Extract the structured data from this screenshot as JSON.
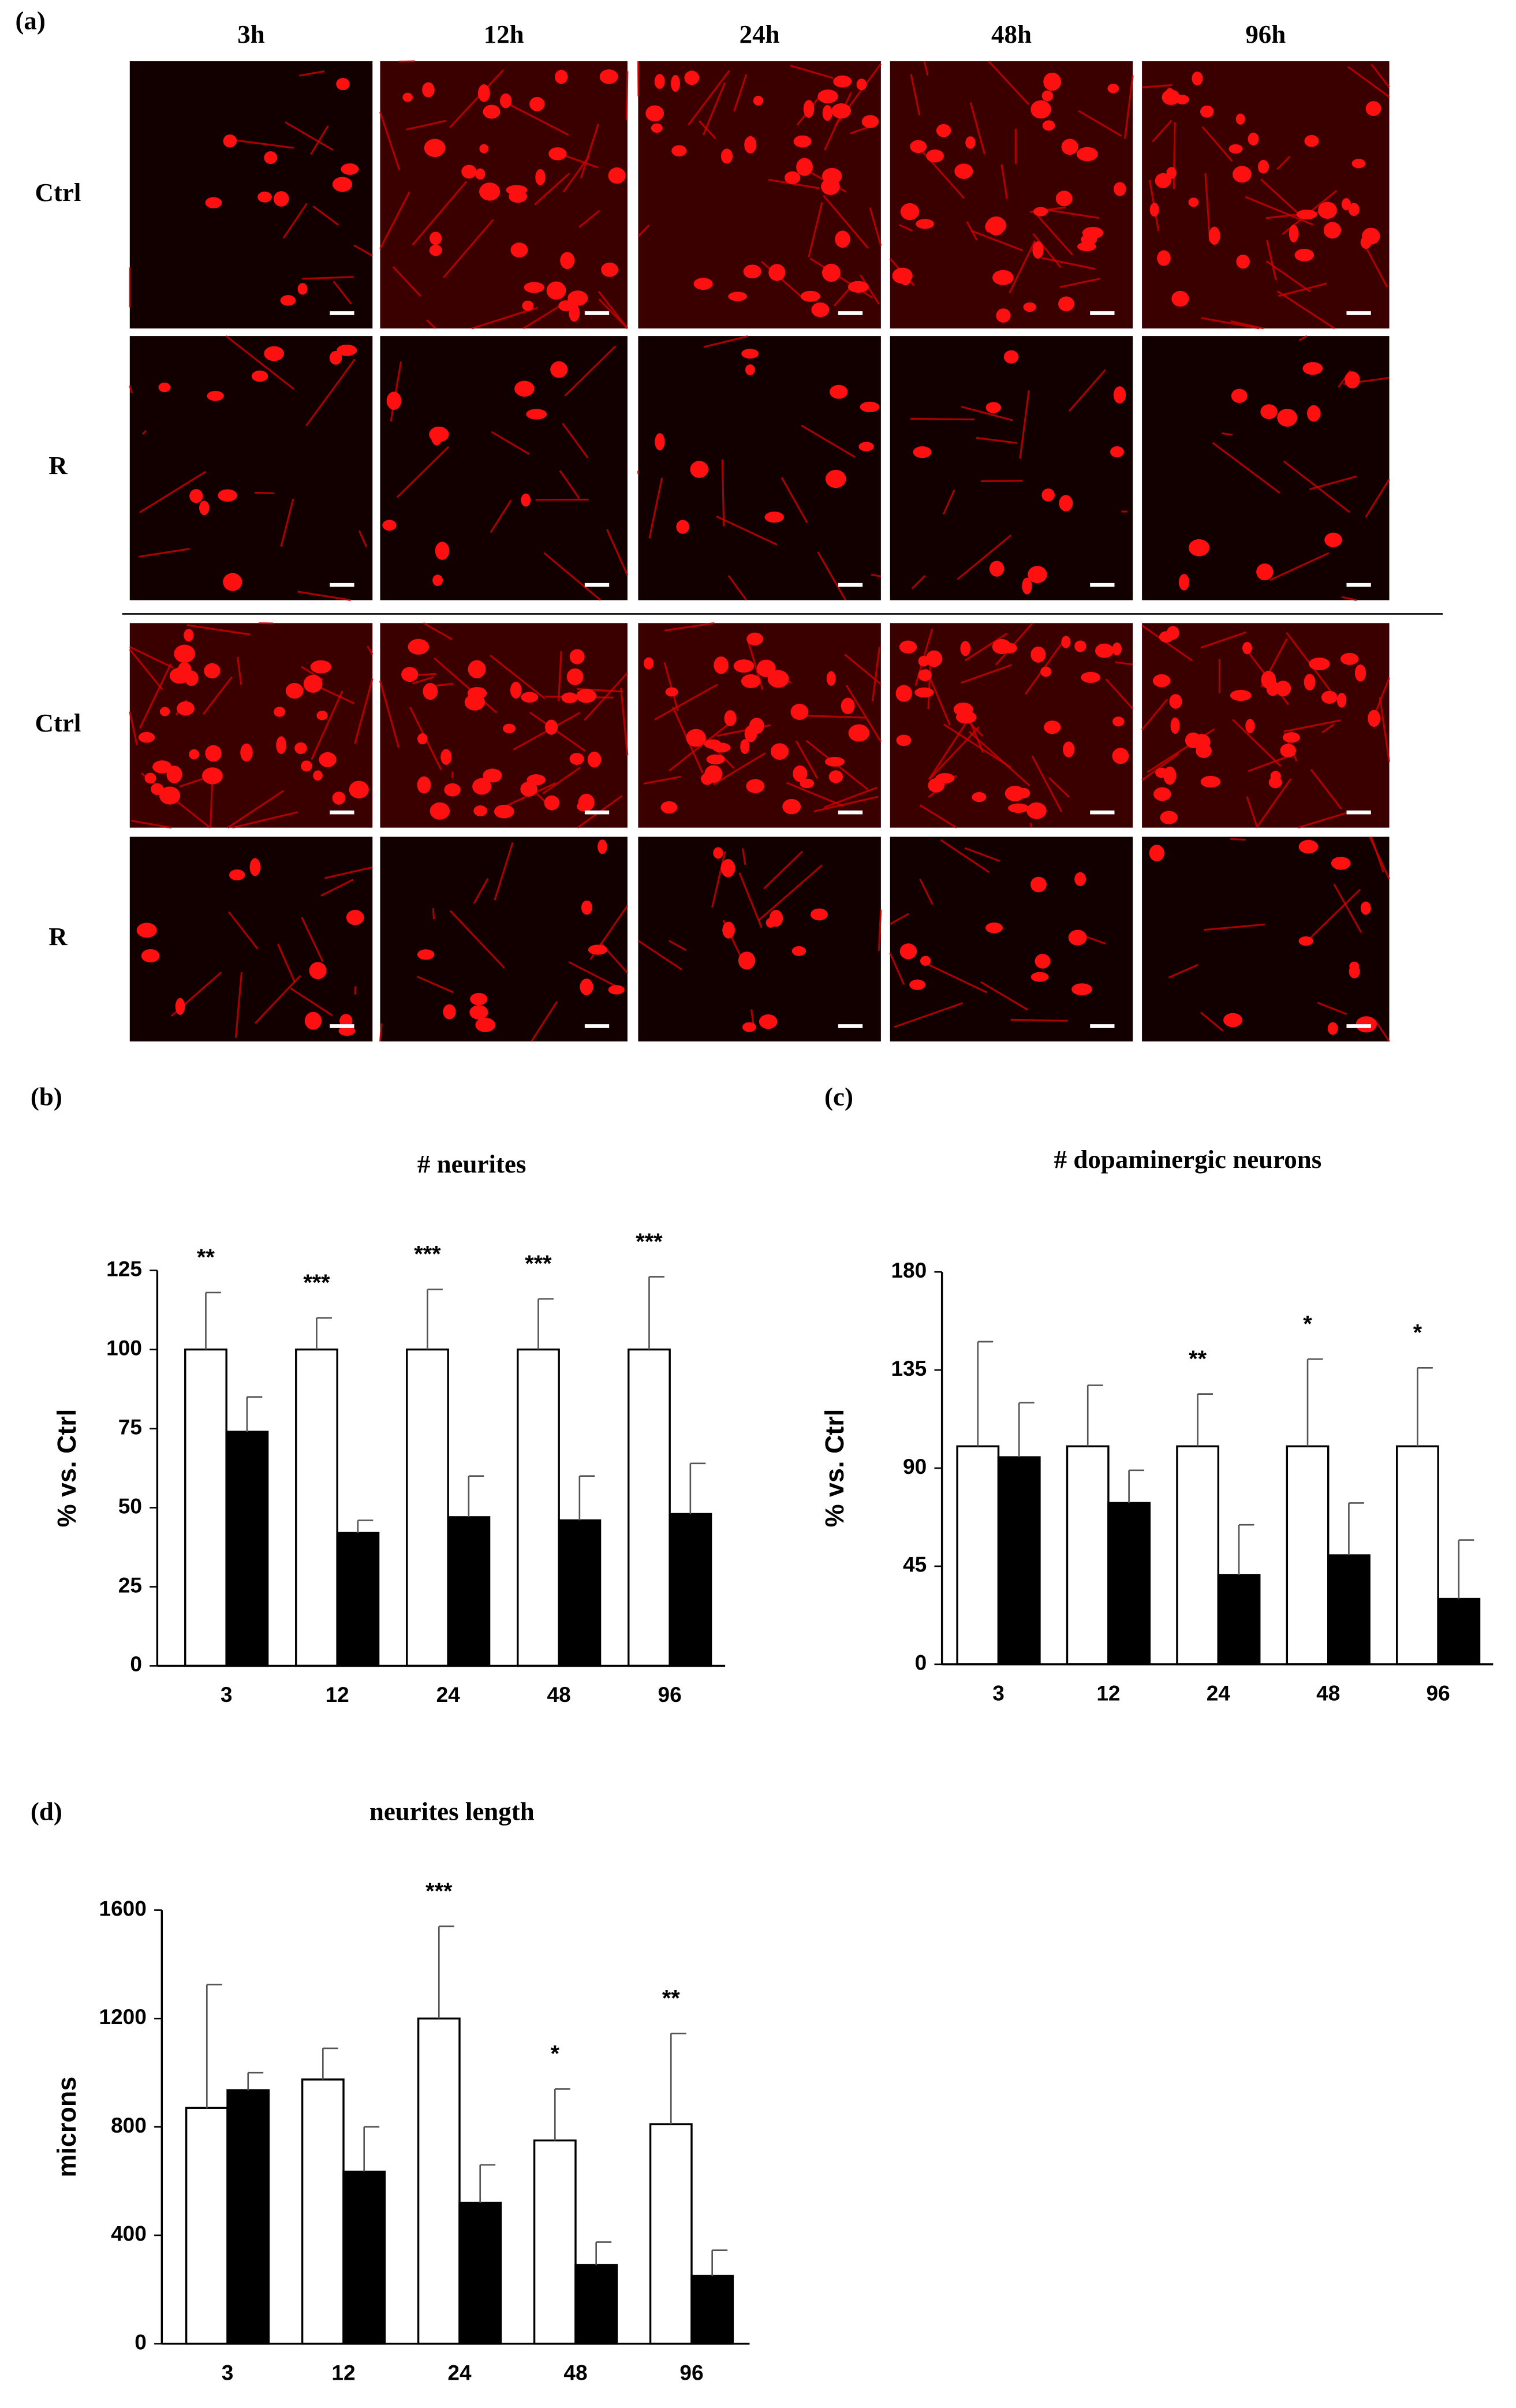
{
  "panel_a": {
    "label": "(a)",
    "columns": [
      "3h",
      "12h",
      "24h",
      "48h",
      "96h"
    ],
    "rows": [
      "Ctrl",
      "R",
      "Ctrl",
      "R"
    ]
  },
  "chart_data": [
    {
      "type": "bar",
      "panel_label": "(b)",
      "title": "# neurites",
      "y_label": "% vs. Ctrl",
      "categories": [
        "3",
        "12",
        "24",
        "48",
        "96"
      ],
      "series": [
        {
          "color": "#ffffff",
          "values": [
            100,
            100,
            100,
            100,
            100
          ],
          "errors": [
            18,
            10,
            19,
            16,
            23
          ]
        },
        {
          "color": "#000000",
          "values": [
            74,
            42,
            47,
            46,
            48
          ],
          "errors": [
            11,
            4,
            13,
            14,
            16
          ]
        }
      ],
      "annotations": [
        "**",
        "***",
        "***",
        "***",
        "***"
      ],
      "ylim": [
        0,
        125
      ],
      "yticks": [
        0,
        25,
        50,
        75,
        100,
        125
      ]
    },
    {
      "type": "bar",
      "panel_label": "(c)",
      "title": "# dopaminergic neurons",
      "y_label": "% vs. Ctrl",
      "categories": [
        "3",
        "12",
        "24",
        "48",
        "96"
      ],
      "series": [
        {
          "color": "#ffffff",
          "values": [
            100,
            100,
            100,
            100,
            100
          ],
          "errors": [
            48,
            28,
            24,
            40,
            36
          ]
        },
        {
          "color": "#000000",
          "values": [
            95,
            74,
            41,
            50,
            30
          ],
          "errors": [
            25,
            15,
            23,
            24,
            27
          ]
        }
      ],
      "annotations": [
        null,
        null,
        "**",
        "*",
        "*"
      ],
      "ylim": [
        0,
        180
      ],
      "yticks": [
        0,
        45,
        90,
        135,
        180
      ]
    },
    {
      "type": "bar",
      "panel_label": "(d)",
      "title": "neurites length",
      "y_label": "microns",
      "categories": [
        "3",
        "12",
        "24",
        "48",
        "96"
      ],
      "series": [
        {
          "color": "#ffffff",
          "values": [
            870,
            975,
            1200,
            750,
            810
          ],
          "errors": [
            455,
            115,
            340,
            190,
            335
          ]
        },
        {
          "color": "#000000",
          "values": [
            935,
            635,
            520,
            290,
            250
          ],
          "errors": [
            65,
            165,
            140,
            85,
            95
          ]
        }
      ],
      "annotations": [
        null,
        null,
        "***",
        "*",
        "**"
      ],
      "ylim": [
        0,
        1600
      ],
      "yticks": [
        0,
        400,
        800,
        1200,
        1600
      ]
    }
  ]
}
